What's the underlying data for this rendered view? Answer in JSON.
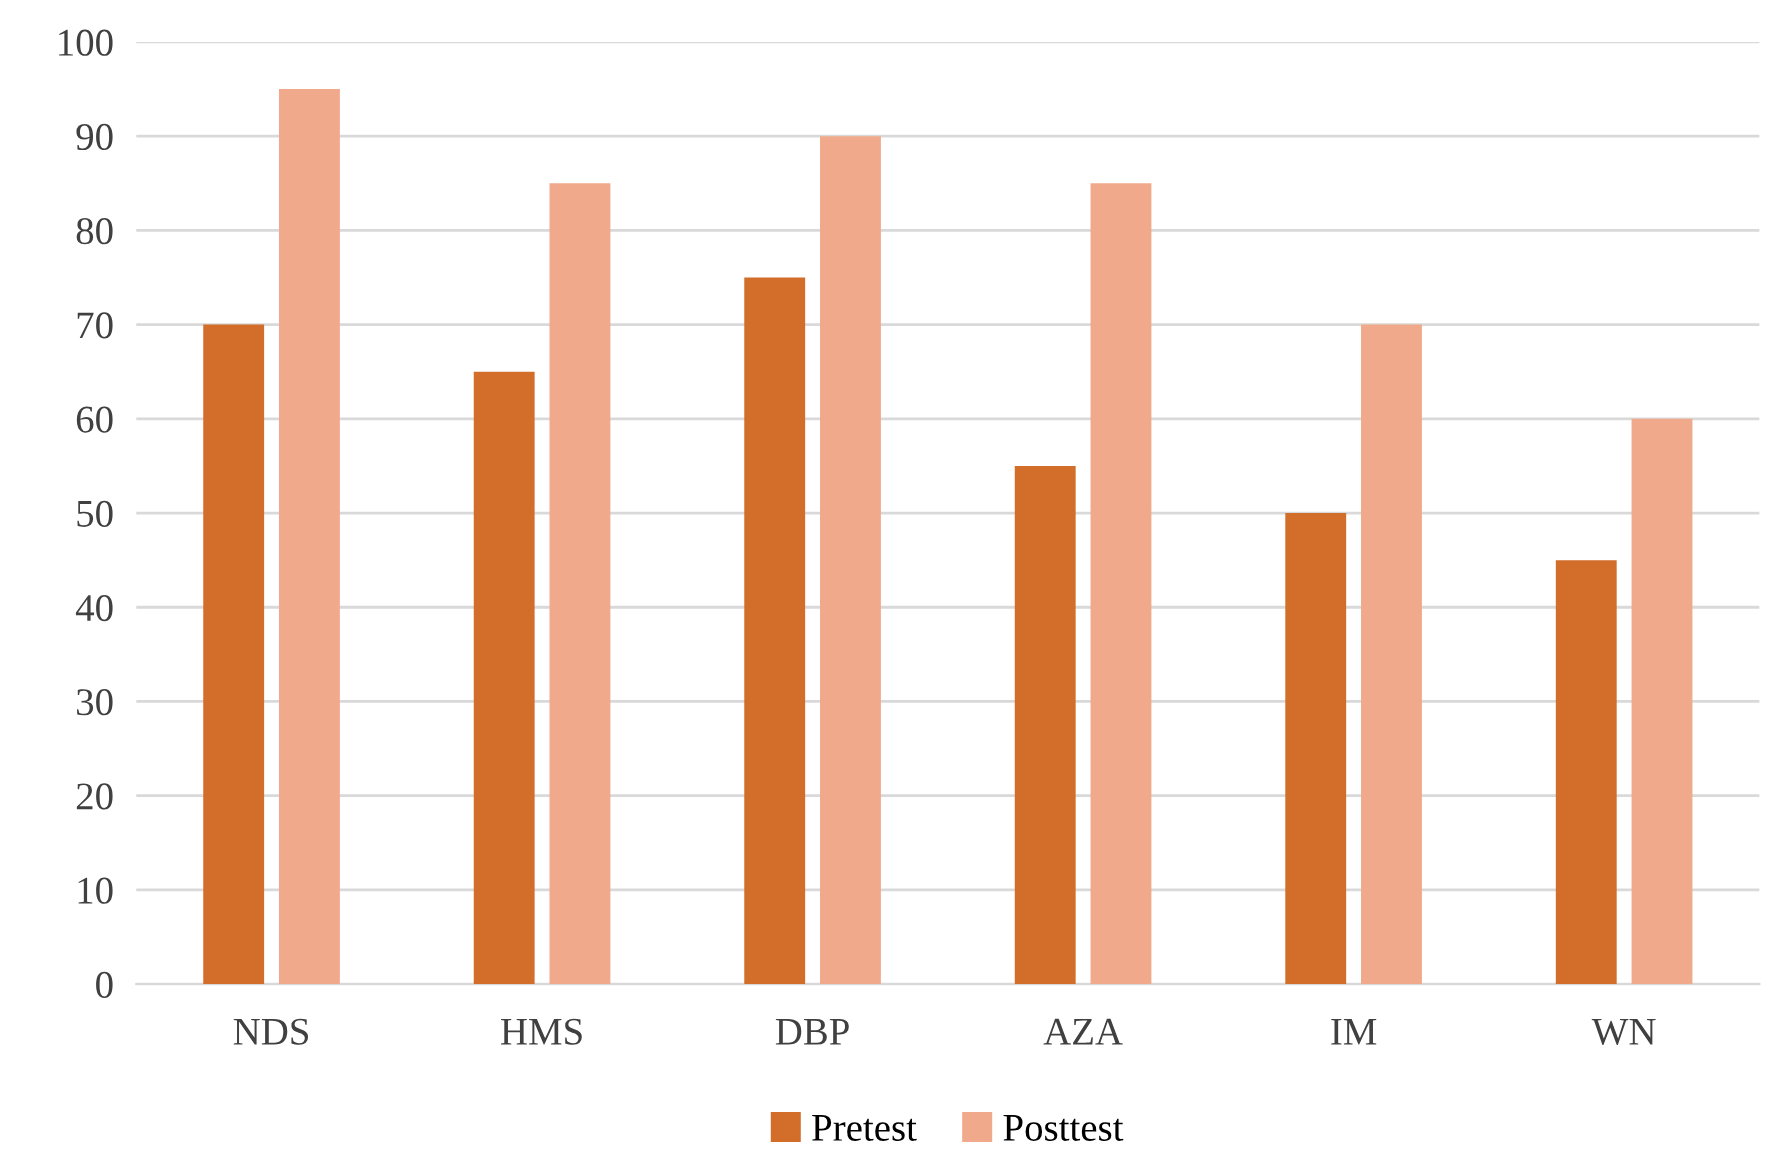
{
  "chart_data": {
    "type": "bar",
    "categories": [
      "NDS",
      "HMS",
      "DBP",
      "AZA",
      "IM",
      "WN"
    ],
    "series": [
      {
        "name": "Pretest",
        "color": "#d26d2a",
        "values": [
          70,
          65,
          75,
          55,
          50,
          45
        ]
      },
      {
        "name": "Posttest",
        "color": "#f0a98a",
        "values": [
          95,
          85,
          90,
          85,
          70,
          60
        ]
      }
    ],
    "ylim": [
      0,
      100
    ],
    "yticks": [
      0,
      10,
      20,
      30,
      40,
      50,
      60,
      70,
      80,
      90,
      100
    ],
    "grid": "y",
    "legend": "bottom"
  }
}
